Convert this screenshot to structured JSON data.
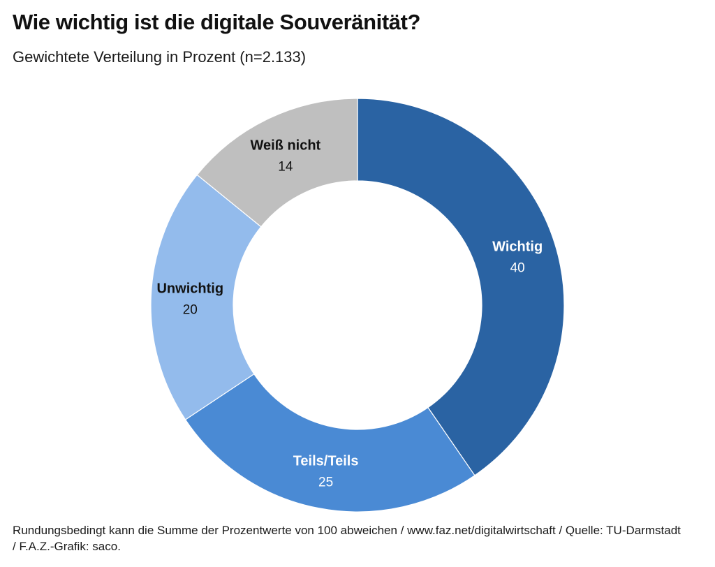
{
  "chart_data": {
    "type": "pie",
    "variant": "donut",
    "title": "Wie wichtig ist die digitale Souveränität?",
    "subtitle": "Gewichtete Verteilung in Prozent (n=2.133)",
    "unit": "%",
    "start": "top",
    "direction": "clockwise",
    "slices": [
      {
        "label": "Wichtig",
        "value": 40,
        "color": "#2a63a3",
        "text_color": "#ffffff"
      },
      {
        "label": "Teils/Teils",
        "value": 25,
        "color": "#4a8ad4",
        "text_color": "#ffffff"
      },
      {
        "label": "Unwichtig",
        "value": 20,
        "color": "#93bbec",
        "text_color": "#111111"
      },
      {
        "label": "Weiß nicht",
        "value": 14,
        "color": "#bfbfbf",
        "text_color": "#111111"
      }
    ],
    "footer": "Rundungsbedingt kann die Summe der Prozentwerte von 100 abweichen / www.faz.net/digitalwirtschaft / Quelle: TU-Darmstadt / F.A.Z.-Grafik: saco."
  }
}
